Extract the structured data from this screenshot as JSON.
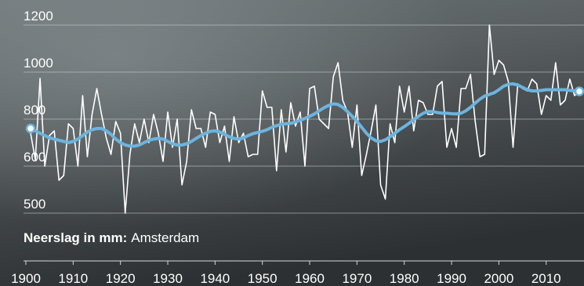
{
  "chart_data": {
    "type": "line",
    "title_bold": "Neerslag in mm:",
    "title": "Amsterdam",
    "x": [
      1901,
      1902,
      1903,
      1904,
      1905,
      1906,
      1907,
      1908,
      1909,
      1910,
      1911,
      1912,
      1913,
      1914,
      1915,
      1916,
      1917,
      1918,
      1919,
      1920,
      1921,
      1922,
      1923,
      1924,
      1925,
      1926,
      1927,
      1928,
      1929,
      1930,
      1931,
      1932,
      1933,
      1934,
      1935,
      1936,
      1937,
      1938,
      1939,
      1940,
      1941,
      1942,
      1943,
      1944,
      1945,
      1946,
      1947,
      1948,
      1949,
      1950,
      1951,
      1952,
      1953,
      1954,
      1955,
      1956,
      1957,
      1958,
      1959,
      1960,
      1961,
      1962,
      1963,
      1964,
      1965,
      1966,
      1967,
      1968,
      1969,
      1970,
      1971,
      1972,
      1973,
      1974,
      1975,
      1976,
      1977,
      1978,
      1979,
      1980,
      1981,
      1982,
      1983,
      1984,
      1985,
      1986,
      1987,
      1988,
      1989,
      1990,
      1991,
      1992,
      1993,
      1994,
      1995,
      1996,
      1997,
      1998,
      1999,
      2000,
      2001,
      2002,
      2003,
      2004,
      2005,
      2006,
      2007,
      2008,
      2009,
      2010,
      2011,
      2012,
      2013,
      2014,
      2015,
      2016,
      2017
    ],
    "series": [
      {
        "color": "#ffffff",
        "width": 1.6,
        "values": [
          740,
          627,
          973,
          600,
          730,
          750,
          570,
          580,
          780,
          760,
          600,
          900,
          640,
          820,
          930,
          820,
          720,
          650,
          790,
          740,
          500,
          650,
          780,
          700,
          800,
          700,
          820,
          740,
          620,
          830,
          680,
          800,
          560,
          620,
          840,
          760,
          760,
          680,
          830,
          820,
          700,
          770,
          620,
          810,
          700,
          740,
          640,
          650,
          650,
          920,
          850,
          850,
          590,
          840,
          660,
          870,
          770,
          830,
          600,
          930,
          940,
          800,
          780,
          760,
          980,
          1040,
          880,
          830,
          680,
          860,
          580,
          650,
          750,
          860,
          560,
          530,
          780,
          700,
          940,
          830,
          940,
          750,
          880,
          870,
          820,
          820,
          940,
          960,
          680,
          760,
          680,
          930,
          930,
          990,
          790,
          640,
          650,
          1200,
          990,
          1050,
          1030,
          960,
          680,
          950,
          930,
          920,
          970,
          950,
          820,
          900,
          880,
          1040,
          860,
          880,
          970,
          900,
          920
        ]
      },
      {
        "color": "#6cb4de",
        "width": 4,
        "endpoints": true,
        "values": [
          760,
          750,
          740,
          730,
          720,
          715,
          710,
          705,
          700,
          705,
          715,
          730,
          745,
          755,
          760,
          760,
          750,
          735,
          715,
          700,
          690,
          685,
          685,
          690,
          700,
          710,
          715,
          718,
          715,
          705,
          695,
          690,
          690,
          695,
          705,
          718,
          730,
          740,
          748,
          750,
          745,
          735,
          725,
          718,
          715,
          720,
          730,
          738,
          743,
          748,
          755,
          765,
          772,
          778,
          780,
          782,
          788,
          795,
          803,
          812,
          822,
          835,
          848,
          858,
          865,
          862,
          850,
          832,
          812,
          790,
          765,
          740,
          720,
          708,
          705,
          712,
          725,
          740,
          755,
          768,
          782,
          798,
          812,
          825,
          832,
          832,
          828,
          825,
          825,
          823,
          822,
          825,
          835,
          850,
          868,
          885,
          898,
          905,
          912,
          925,
          940,
          948,
          950,
          945,
          935,
          925,
          920,
          920,
          922,
          925,
          925,
          925,
          925,
          925,
          922,
          920,
          918
        ]
      }
    ],
    "xlim": [
      1900,
      2018
    ],
    "xticks": [
      1900,
      1910,
      1920,
      1930,
      1940,
      1950,
      1960,
      1970,
      1980,
      1990,
      2000,
      2010
    ],
    "ylim": [
      500,
      1200
    ],
    "yticks": [
      500,
      600,
      800,
      1000,
      1200
    ],
    "grid": true
  }
}
